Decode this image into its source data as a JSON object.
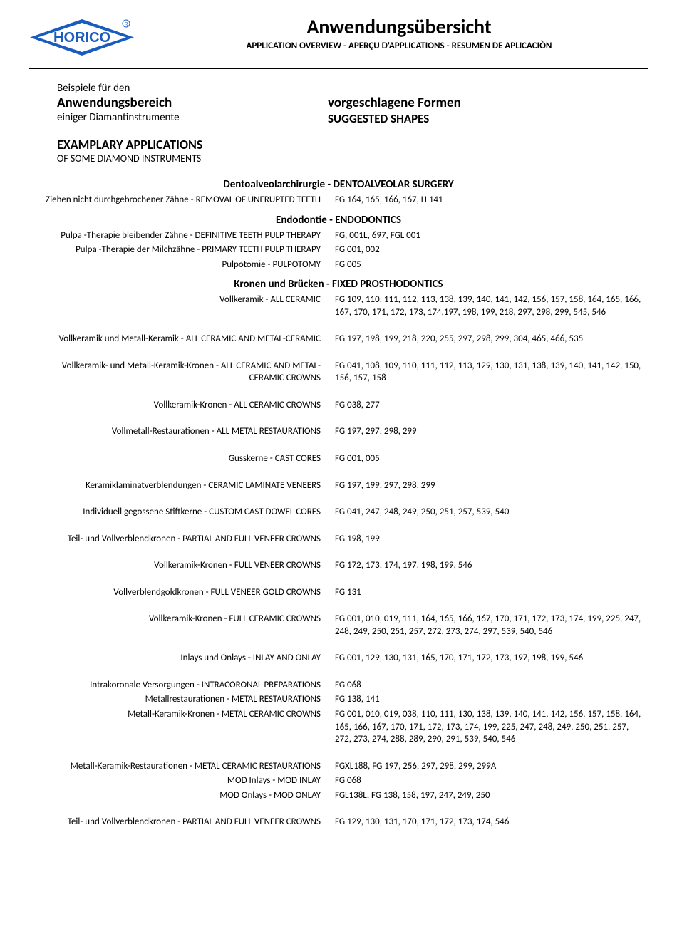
{
  "logo_text": "HORICO",
  "logo_color": "#1a5bbf",
  "header": {
    "title": "Anwendungsübersicht",
    "subtitle": "APPLICATION OVERVIEW - APERÇU D'APPLICATIONS - RESUMEN DE APLICACIÒN"
  },
  "intro": {
    "left": {
      "l1": "Beispiele für den",
      "l2": "Anwendungsbereich",
      "l3": "einiger Diamantinstrumente",
      "l4": "EXAMPLARY APPLICATIONS",
      "l5": "OF SOME DIAMOND INSTRUMENTS"
    },
    "right": {
      "r1": "vorgeschlagene Formen",
      "r2": "SUGGESTED SHAPES"
    }
  },
  "sections": [
    {
      "title": "Dentoalveolarchirurgie - DENTOALVEOLAR SURGERY",
      "rows": [
        {
          "label": "Ziehen nicht durchgebrochener Zähne - REMOVAL OF UNERUPTED TEETH",
          "value": "FG 164, 165, 166, 167, H  141"
        }
      ]
    },
    {
      "title": "Endodontie - ENDODONTICS",
      "rows": [
        {
          "label": "Pulpa -Therapie bleibender Zähne - DEFINITIVE TEETH PULP THERAPY",
          "value": "FG, 001L, 697, FGL 001"
        },
        {
          "label": "Pulpa -Therapie der Milchzähne - PRIMARY TEETH PULP THERAPY",
          "value": "FG 001, 002"
        },
        {
          "label": "Pulpotomie - PULPOTOMY",
          "value": "FG 005"
        }
      ]
    },
    {
      "title": "Kronen und Brücken - FIXED PROSTHODONTICS",
      "rows": [
        {
          "label": "Vollkeramik - ALL CERAMIC",
          "value": "FG 109, 110, 111, 112, 113, 138, 139, 140, 141, 142, 156, 157, 158, 164, 165, 166, 167, 170, 171, 172, 173, 174,197, 198, 199, 218, 297, 298, 299, 545, 546"
        },
        {
          "spacer": true
        },
        {
          "label": "Vollkeramik und Metall-Keramik - ALL CERAMIC AND METAL-CERAMIC",
          "value": "FG 197, 198, 199, 218, 220, 255, 297, 298, 299, 304, 465, 466, 535"
        },
        {
          "spacer": true
        },
        {
          "label": "Vollkeramik- und Metall-Keramik-Kronen - ALL CERAMIC AND METAL-CERAMIC CROWNS",
          "value": "FG 041, 108, 109, 110, 111, 112, 113, 129, 130, 131, 138, 139, 140, 141, 142, 150, 156, 157, 158"
        },
        {
          "spacer": true
        },
        {
          "label": "Vollkeramik-Kronen  - ALL CERAMIC CROWNS",
          "value": "FG 038, 277"
        },
        {
          "spacer": true
        },
        {
          "label": "Vollmetall-Restaurationen - ALL METAL RESTAURATIONS",
          "value": "FG 197, 297, 298, 299"
        },
        {
          "spacer": true
        },
        {
          "label": "Gusskerne - CAST CORES",
          "value": "FG 001, 005"
        },
        {
          "spacer": true
        },
        {
          "label": "Keramiklaminatverblendungen - CERAMIC LAMINATE VENEERS",
          "value": "FG 197, 199, 297, 298, 299"
        },
        {
          "spacer": true
        },
        {
          "label": "Individuell gegossene Stiftkerne - CUSTOM CAST DOWEL CORES",
          "value": "FG 041, 247, 248, 249, 250, 251, 257, 539, 540"
        },
        {
          "spacer": true
        },
        {
          "label": "Teil- und Vollverblendkronen - PARTIAL AND FULL VENEER CROWNS",
          "value": "FG 198, 199"
        },
        {
          "spacer": true
        },
        {
          "label": "Vollkeramik-Kronen - FULL VENEER CROWNS",
          "value": "FG 172, 173, 174, 197, 198, 199, 546"
        },
        {
          "spacer": true
        },
        {
          "label": "Vollverblendgoldkronen - FULL VENEER GOLD CROWNS",
          "value": "FG 131"
        },
        {
          "spacer": true
        },
        {
          "label": "Vollkeramik-Kronen - FULL CERAMIC CROWNS",
          "value": "FG 001, 010, 019, 111, 164, 165, 166, 167, 170, 171, 172, 173, 174, 199, 225, 247, 248, 249, 250, 251, 257, 272, 273, 274, 297, 539, 540, 546"
        },
        {
          "spacer": true
        },
        {
          "label": "Inlays und Onlays - INLAY AND ONLAY",
          "value": "FG 001, 129, 130, 131, 165, 170, 171, 172, 173, 197, 198, 199,  546"
        },
        {
          "spacer": true
        },
        {
          "label": "Intrakoronale Versorgungen - INTRACORONAL PREPARATIONS",
          "value": "FG 068"
        },
        {
          "label": "Metallrestaurationen - METAL RESTAURATIONS",
          "value": "FG 138, 141"
        },
        {
          "label": "Metall-Keramik-Kronen - METAL CERAMIC CROWNS",
          "value": "FG 001, 010, 019, 038, 110, 111, 130, 138, 139, 140, 141, 142, 156, 157, 158, 164, 165, 166, 167, 170, 171, 172, 173, 174, 199, 225, 247, 248, 249, 250, 251, 257, 272, 273, 274, 288, 289, 290, 291, 539, 540, 546"
        },
        {
          "spacer": true
        },
        {
          "label": "Metall-Keramik-Restaurationen - METAL CERAMIC RESTAURATIONS",
          "value": "FGXL188, FG 197, 256, 297, 298, 299, 299A"
        },
        {
          "label": "MOD Inlays - MOD INLAY",
          "value": "FG 068"
        },
        {
          "label": "MOD Onlays - MOD ONLAY",
          "value": "FGL138L, FG 138, 158, 197, 247, 249, 250"
        },
        {
          "spacer": true
        },
        {
          "label": "Teil- und Vollverblendkronen - PARTIAL AND FULL VENEER CROWNS",
          "value": "FG 129, 130, 131, 170, 171, 172, 173, 174, 546"
        }
      ]
    }
  ]
}
